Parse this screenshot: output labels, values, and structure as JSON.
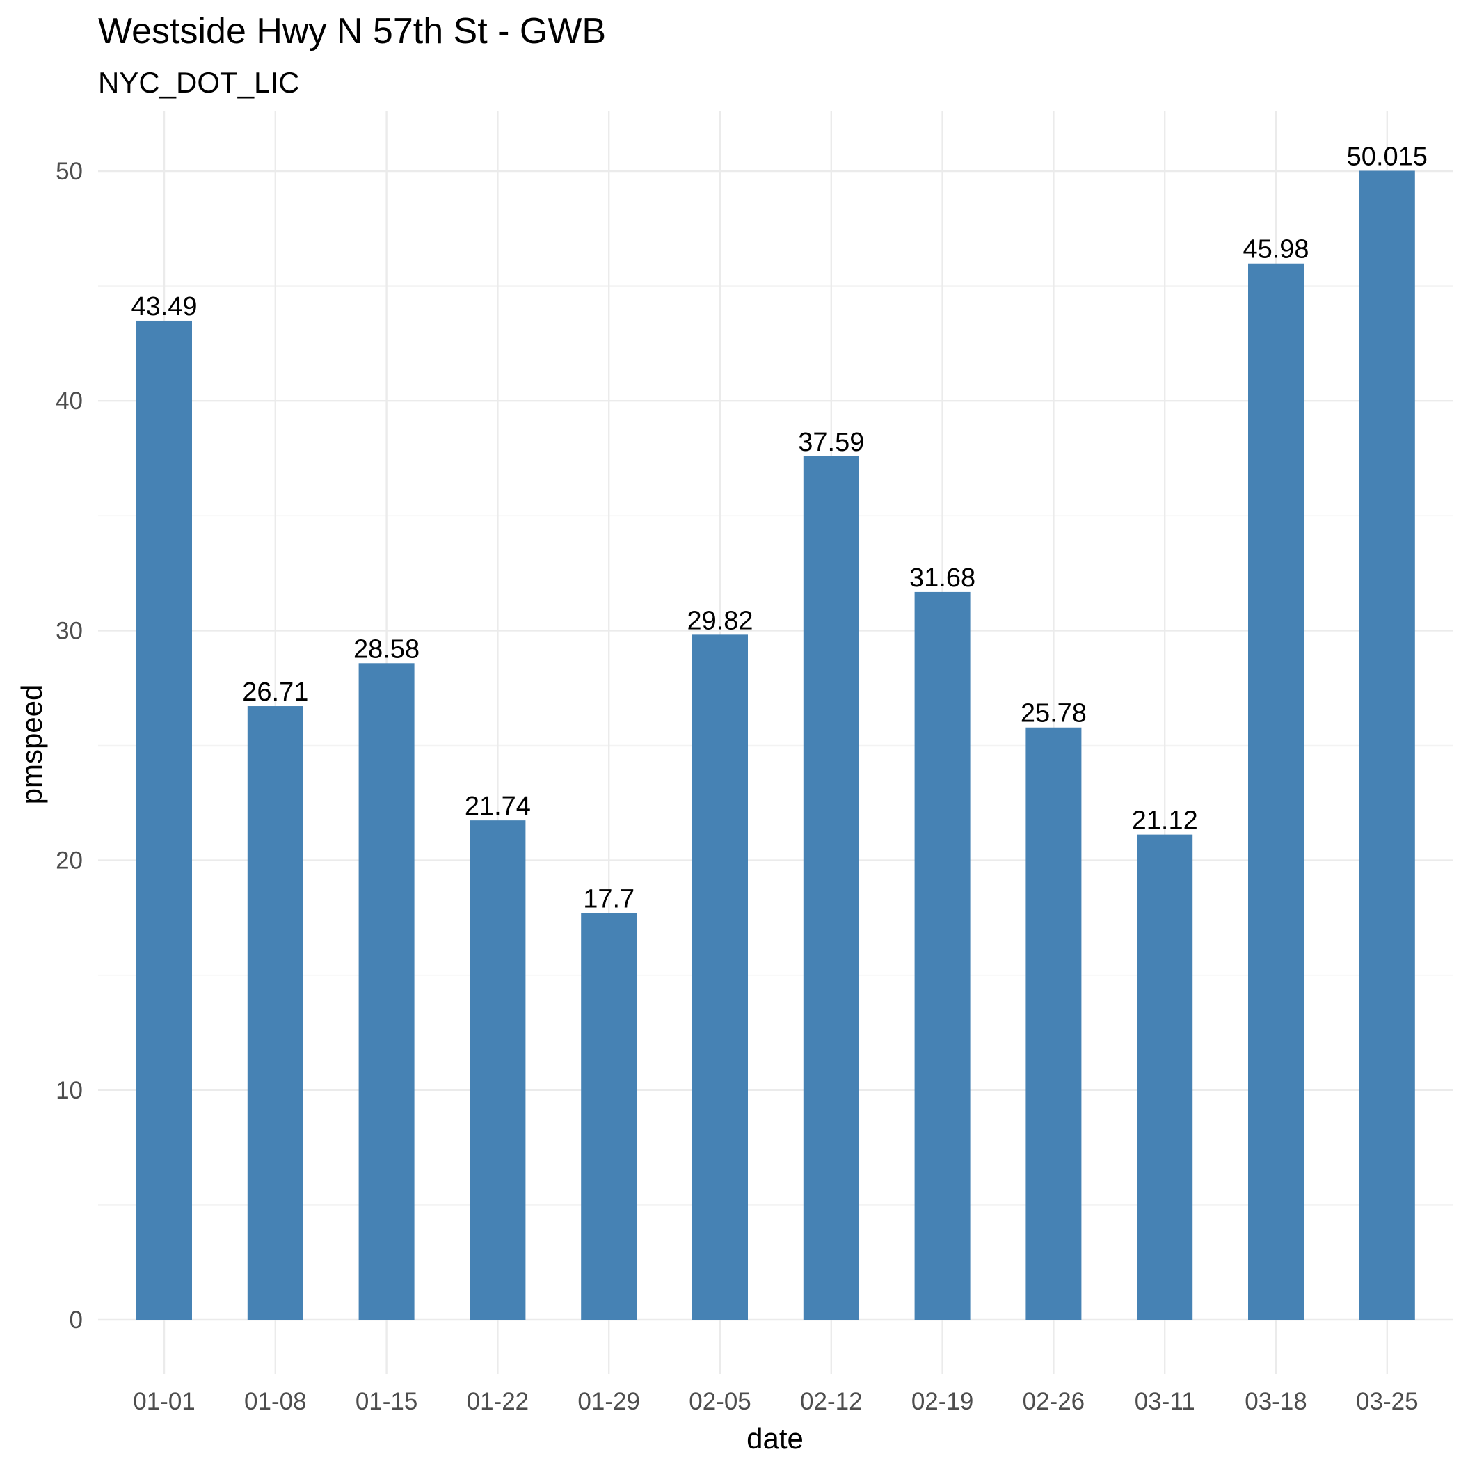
{
  "chart_data": {
    "type": "bar",
    "title": "Westside Hwy N 57th St - GWB",
    "subtitle": "NYC_DOT_LIC",
    "xlabel": "date",
    "ylabel": "pmspeed",
    "categories": [
      "01-01",
      "01-08",
      "01-15",
      "01-22",
      "01-29",
      "02-05",
      "02-12",
      "02-19",
      "02-26",
      "03-11",
      "03-18",
      "03-25"
    ],
    "values": [
      43.49,
      26.71,
      28.58,
      21.74,
      17.7,
      29.82,
      37.59,
      31.68,
      25.78,
      21.12,
      45.98,
      50.015
    ],
    "value_labels": [
      "43.49",
      "26.71",
      "28.58",
      "21.74",
      "17.7",
      "29.82",
      "37.59",
      "31.68",
      "25.78",
      "21.12",
      "45.98",
      "50.015"
    ],
    "y_ticks": [
      0,
      10,
      20,
      30,
      40,
      50
    ],
    "ylim": [
      0,
      52.5
    ],
    "bar_color": "#4682B4",
    "grid": true,
    "legend": "none"
  }
}
